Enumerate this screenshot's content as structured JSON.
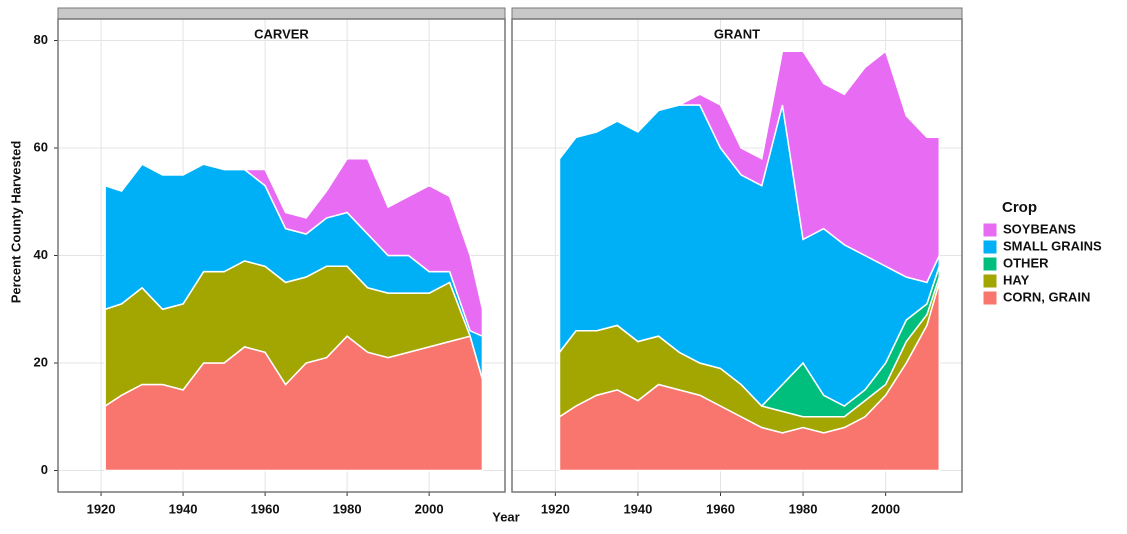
{
  "chart_data": [
    {
      "type": "area",
      "title": "CARVER",
      "xlabel": "Year",
      "ylabel": "Percent County Harvested",
      "legend_title": "Crop",
      "x": [
        1921,
        1925,
        1930,
        1935,
        1940,
        1945,
        1950,
        1955,
        1960,
        1965,
        1970,
        1975,
        1980,
        1985,
        1990,
        1995,
        2000,
        2005,
        2010,
        2013
      ],
      "series": [
        {
          "name": "CORN, GRAIN",
          "color": "#f8766d",
          "values": [
            12,
            14,
            16,
            16,
            15,
            20,
            20,
            23,
            22,
            16,
            20,
            21,
            25,
            22,
            21,
            22,
            23,
            24,
            25,
            17
          ]
        },
        {
          "name": "HAY",
          "color": "#a3a500",
          "values": [
            18,
            17,
            18,
            14,
            16,
            17,
            17,
            16,
            16,
            19,
            16,
            17,
            13,
            12,
            12,
            11,
            10,
            11,
            0,
            0
          ]
        },
        {
          "name": "OTHER",
          "color": "#00bf7d",
          "values": [
            0,
            0,
            0,
            0,
            0,
            0,
            0,
            0,
            0,
            0,
            0,
            0,
            0,
            0,
            0,
            0,
            0,
            0,
            0,
            0
          ]
        },
        {
          "name": "SMALL GRAINS",
          "color": "#00b0f6",
          "values": [
            23,
            21,
            23,
            25,
            24,
            20,
            19,
            17,
            15,
            10,
            8,
            9,
            10,
            10,
            7,
            7,
            4,
            2,
            1,
            8
          ]
        },
        {
          "name": "SOYBEANS",
          "color": "#e76bf3",
          "values": [
            0,
            0,
            0,
            0,
            0,
            0,
            0,
            0,
            3,
            3,
            3,
            5,
            10,
            14,
            9,
            11,
            16,
            14,
            14,
            5
          ]
        }
      ],
      "xlim": [
        1909.5,
        2018.5
      ],
      "ylim": [
        -4,
        84
      ],
      "xticks": [
        1920,
        1940,
        1960,
        1980,
        2000
      ],
      "yticks": [
        0,
        20,
        40,
        60,
        80
      ],
      "grid": true
    },
    {
      "type": "area",
      "title": "GRANT",
      "x": [
        1921,
        1925,
        1930,
        1935,
        1940,
        1945,
        1950,
        1955,
        1960,
        1965,
        1970,
        1975,
        1980,
        1985,
        1990,
        1995,
        2000,
        2005,
        2010,
        2013
      ],
      "series": [
        {
          "color": "#f8766d",
          "values": [
            10,
            12,
            14,
            15,
            13,
            16,
            15,
            14,
            12,
            10,
            8,
            7,
            8,
            7,
            8,
            10,
            14,
            20,
            27,
            35
          ]
        },
        {
          "color": "#a3a500",
          "values": [
            12,
            14,
            12,
            12,
            11,
            9,
            7,
            6,
            7,
            6,
            4,
            4,
            2,
            3,
            2,
            3,
            2,
            4,
            2,
            1
          ]
        },
        {
          "color": "#00bf7d",
          "values": [
            0,
            0,
            0,
            0,
            0,
            0,
            0,
            0,
            0,
            0,
            0,
            5,
            10,
            4,
            2,
            2,
            4,
            4,
            2,
            2
          ]
        },
        {
          "color": "#00b0f6",
          "values": [
            36,
            36,
            37,
            38,
            39,
            42,
            46,
            48,
            41,
            39,
            41,
            52,
            23,
            31,
            30,
            25,
            18,
            8,
            4,
            2
          ]
        },
        {
          "color": "#e76bf3",
          "values": [
            0,
            0,
            0,
            0,
            0,
            0,
            0,
            2,
            8,
            5,
            5,
            10,
            35,
            27,
            28,
            35,
            40,
            30,
            27,
            22
          ]
        }
      ],
      "xlim": [
        1909.5,
        2018.5
      ],
      "ylim": [
        -4,
        84
      ],
      "xticks": [
        1920,
        1940,
        1960,
        1980,
        2000
      ],
      "yticks": [
        0,
        20,
        40,
        60,
        80
      ],
      "grid": true
    }
  ]
}
